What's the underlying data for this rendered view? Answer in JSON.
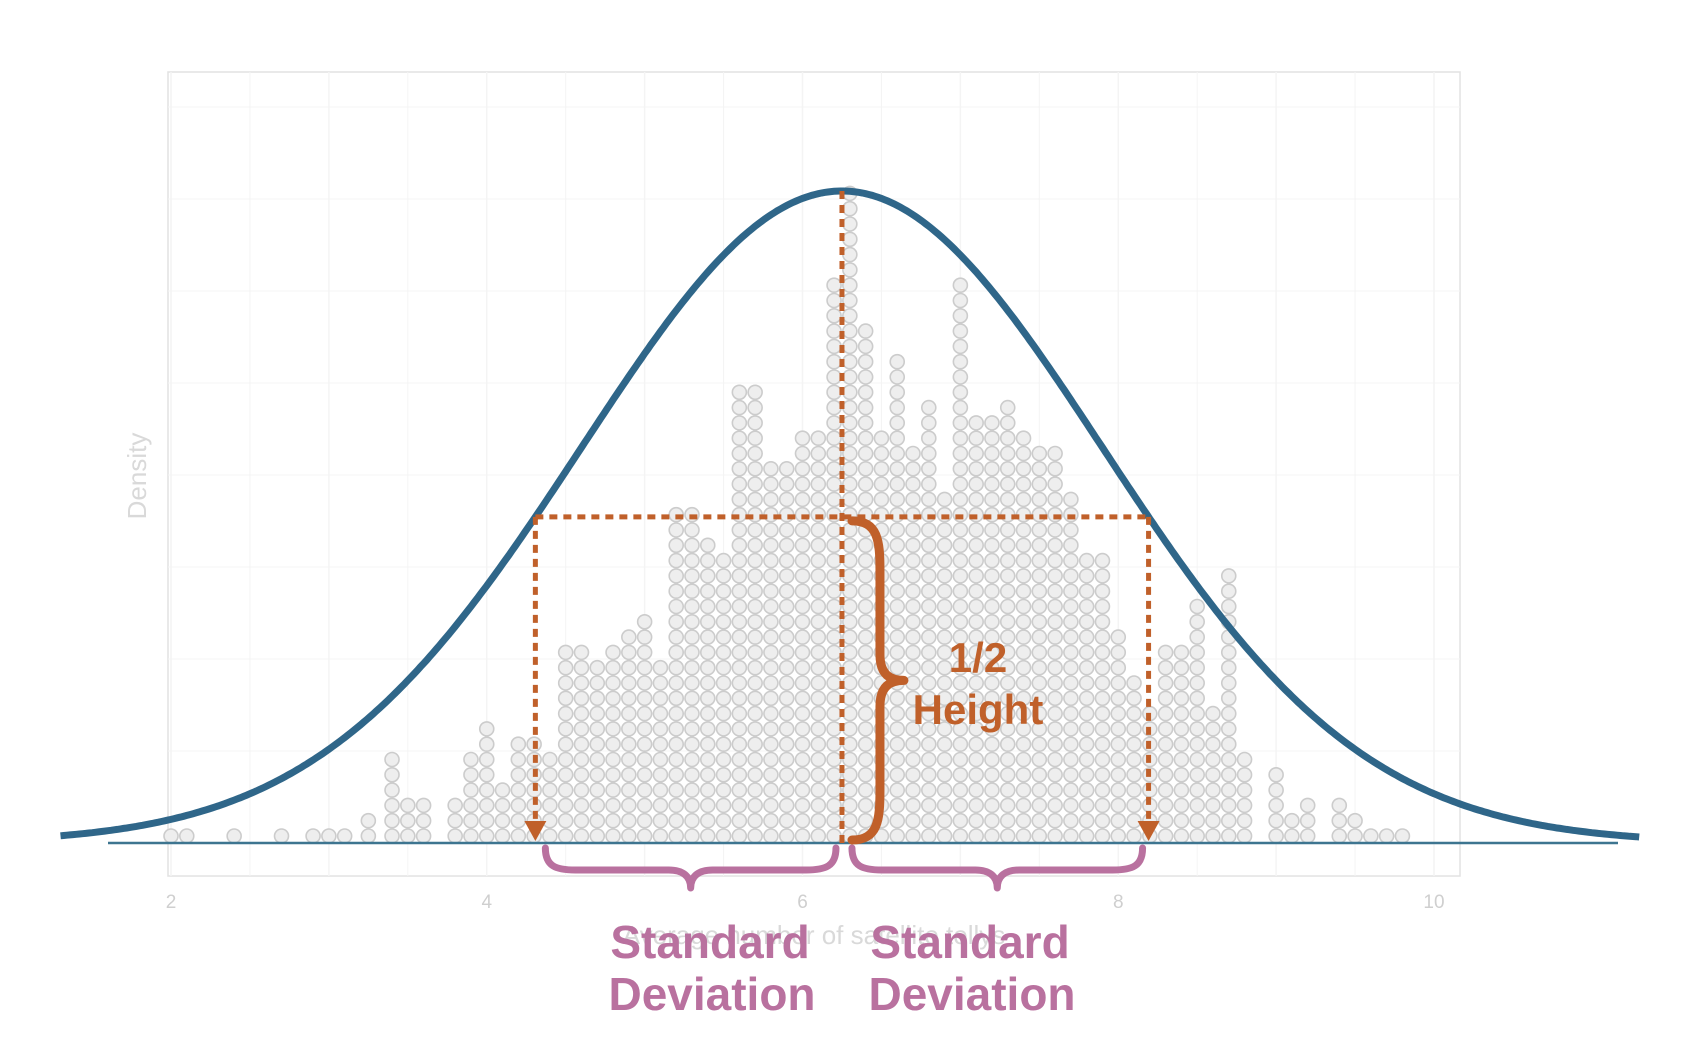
{
  "chart_data": {
    "type": "dotplot-with-density",
    "title": "",
    "xlabel": "Average number of satellite tellys",
    "ylabel": "Density",
    "xlim": [
      2,
      10
    ],
    "x_ticks": [
      "2",
      "4",
      "6",
      "8",
      "10"
    ],
    "grid": true,
    "mean": 6.25,
    "sd": 1.65,
    "dot_bins": [
      {
        "x": 2.0,
        "count": 1
      },
      {
        "x": 2.1,
        "count": 1
      },
      {
        "x": 2.4,
        "count": 1
      },
      {
        "x": 2.7,
        "count": 1
      },
      {
        "x": 2.9,
        "count": 1
      },
      {
        "x": 3.0,
        "count": 1
      },
      {
        "x": 3.1,
        "count": 1
      },
      {
        "x": 3.25,
        "count": 2
      },
      {
        "x": 3.4,
        "count": 6
      },
      {
        "x": 3.5,
        "count": 3
      },
      {
        "x": 3.6,
        "count": 3
      },
      {
        "x": 3.8,
        "count": 3
      },
      {
        "x": 3.9,
        "count": 6
      },
      {
        "x": 4.0,
        "count": 8
      },
      {
        "x": 4.1,
        "count": 4
      },
      {
        "x": 4.2,
        "count": 7
      },
      {
        "x": 4.3,
        "count": 7
      },
      {
        "x": 4.4,
        "count": 6
      },
      {
        "x": 4.5,
        "count": 13
      },
      {
        "x": 4.6,
        "count": 13
      },
      {
        "x": 4.7,
        "count": 12
      },
      {
        "x": 4.8,
        "count": 13
      },
      {
        "x": 4.9,
        "count": 14
      },
      {
        "x": 5.0,
        "count": 15
      },
      {
        "x": 5.1,
        "count": 12
      },
      {
        "x": 5.2,
        "count": 22
      },
      {
        "x": 5.3,
        "count": 22
      },
      {
        "x": 5.4,
        "count": 20
      },
      {
        "x": 5.5,
        "count": 19
      },
      {
        "x": 5.6,
        "count": 30
      },
      {
        "x": 5.7,
        "count": 30
      },
      {
        "x": 5.8,
        "count": 25
      },
      {
        "x": 5.9,
        "count": 25
      },
      {
        "x": 6.0,
        "count": 27
      },
      {
        "x": 6.1,
        "count": 27
      },
      {
        "x": 6.2,
        "count": 37
      },
      {
        "x": 6.3,
        "count": 43
      },
      {
        "x": 6.4,
        "count": 34
      },
      {
        "x": 6.5,
        "count": 27
      },
      {
        "x": 6.6,
        "count": 32
      },
      {
        "x": 6.7,
        "count": 26
      },
      {
        "x": 6.8,
        "count": 29
      },
      {
        "x": 6.9,
        "count": 23
      },
      {
        "x": 7.0,
        "count": 37
      },
      {
        "x": 7.1,
        "count": 28
      },
      {
        "x": 7.2,
        "count": 28
      },
      {
        "x": 7.3,
        "count": 29
      },
      {
        "x": 7.4,
        "count": 27
      },
      {
        "x": 7.5,
        "count": 26
      },
      {
        "x": 7.6,
        "count": 26
      },
      {
        "x": 7.7,
        "count": 23
      },
      {
        "x": 7.8,
        "count": 19
      },
      {
        "x": 7.9,
        "count": 19
      },
      {
        "x": 8.0,
        "count": 14
      },
      {
        "x": 8.1,
        "count": 11
      },
      {
        "x": 8.2,
        "count": 9
      },
      {
        "x": 8.3,
        "count": 13
      },
      {
        "x": 8.4,
        "count": 13
      },
      {
        "x": 8.5,
        "count": 16
      },
      {
        "x": 8.6,
        "count": 9
      },
      {
        "x": 8.7,
        "count": 18
      },
      {
        "x": 8.8,
        "count": 6
      },
      {
        "x": 9.0,
        "count": 5
      },
      {
        "x": 9.1,
        "count": 2
      },
      {
        "x": 9.2,
        "count": 3
      },
      {
        "x": 9.4,
        "count": 3
      },
      {
        "x": 9.5,
        "count": 2
      },
      {
        "x": 9.6,
        "count": 1
      },
      {
        "x": 9.7,
        "count": 1
      },
      {
        "x": 9.8,
        "count": 1
      }
    ],
    "annotations": {
      "half_height_line1": "1/2",
      "half_height_line2": "Height",
      "left_sd_line1": "Standard",
      "left_sd_line2": "Deviation",
      "right_sd_line1": "Standard",
      "right_sd_line2": "Deviation"
    }
  },
  "colors": {
    "curve": "#2f6689",
    "baseline": "#3d7590",
    "dot_fill": "#eeeeee",
    "dot_stroke": "#cccccc",
    "annotation_orange": "#c0602a",
    "annotation_purple": "#b9719f",
    "panel_border": "#e2e2e2",
    "grid": "#f4f4f4"
  }
}
